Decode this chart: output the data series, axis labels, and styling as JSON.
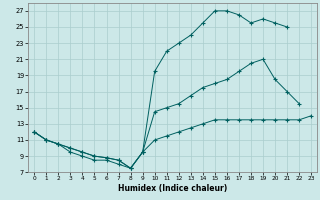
{
  "xlabel": "Humidex (Indice chaleur)",
  "bg_color": "#cce8e8",
  "line_color": "#006060",
  "grid_color": "#aacece",
  "xlim": [
    -0.5,
    23.5
  ],
  "ylim": [
    7,
    28
  ],
  "xticks": [
    0,
    1,
    2,
    3,
    4,
    5,
    6,
    7,
    8,
    9,
    10,
    11,
    12,
    13,
    14,
    15,
    16,
    17,
    18,
    19,
    20,
    21,
    22,
    23
  ],
  "yticks": [
    7,
    9,
    11,
    13,
    15,
    17,
    19,
    21,
    23,
    25,
    27
  ],
  "line_top_x": [
    0,
    1,
    2,
    3,
    4,
    5,
    6,
    7,
    8,
    9,
    10,
    11,
    12,
    13,
    14,
    15,
    16,
    17,
    18,
    19,
    20,
    21,
    22,
    23
  ],
  "line_top_y": [
    12,
    11,
    10.5,
    10,
    9.5,
    9,
    8.8,
    8.5,
    7.5,
    9.5,
    19.5,
    22,
    23,
    24,
    25.5,
    27,
    27,
    26.5,
    25.5,
    26,
    25.5,
    25,
    null,
    null
  ],
  "line_mid_x": [
    0,
    1,
    2,
    3,
    4,
    5,
    6,
    7,
    8,
    9,
    10,
    11,
    12,
    13,
    14,
    15,
    16,
    17,
    18,
    19,
    20,
    21,
    22,
    23
  ],
  "line_mid_y": [
    12,
    11,
    10.5,
    10,
    9.5,
    9,
    8.8,
    8.5,
    7.5,
    9.5,
    14.5,
    15,
    15.5,
    16.5,
    17.5,
    18,
    18.5,
    19.5,
    20.5,
    21,
    18.5,
    17,
    15.5,
    null
  ],
  "line_bot_x": [
    0,
    1,
    2,
    3,
    4,
    5,
    6,
    7,
    8,
    9,
    10,
    11,
    12,
    13,
    14,
    15,
    16,
    17,
    18,
    19,
    20,
    21,
    22,
    23
  ],
  "line_bot_y": [
    12,
    11,
    10.5,
    9.5,
    9,
    8.5,
    8.5,
    8,
    7.5,
    9.5,
    11,
    11.5,
    12,
    12.5,
    13,
    13.5,
    13.5,
    13.5,
    13.5,
    13.5,
    13.5,
    13.5,
    13.5,
    14
  ]
}
